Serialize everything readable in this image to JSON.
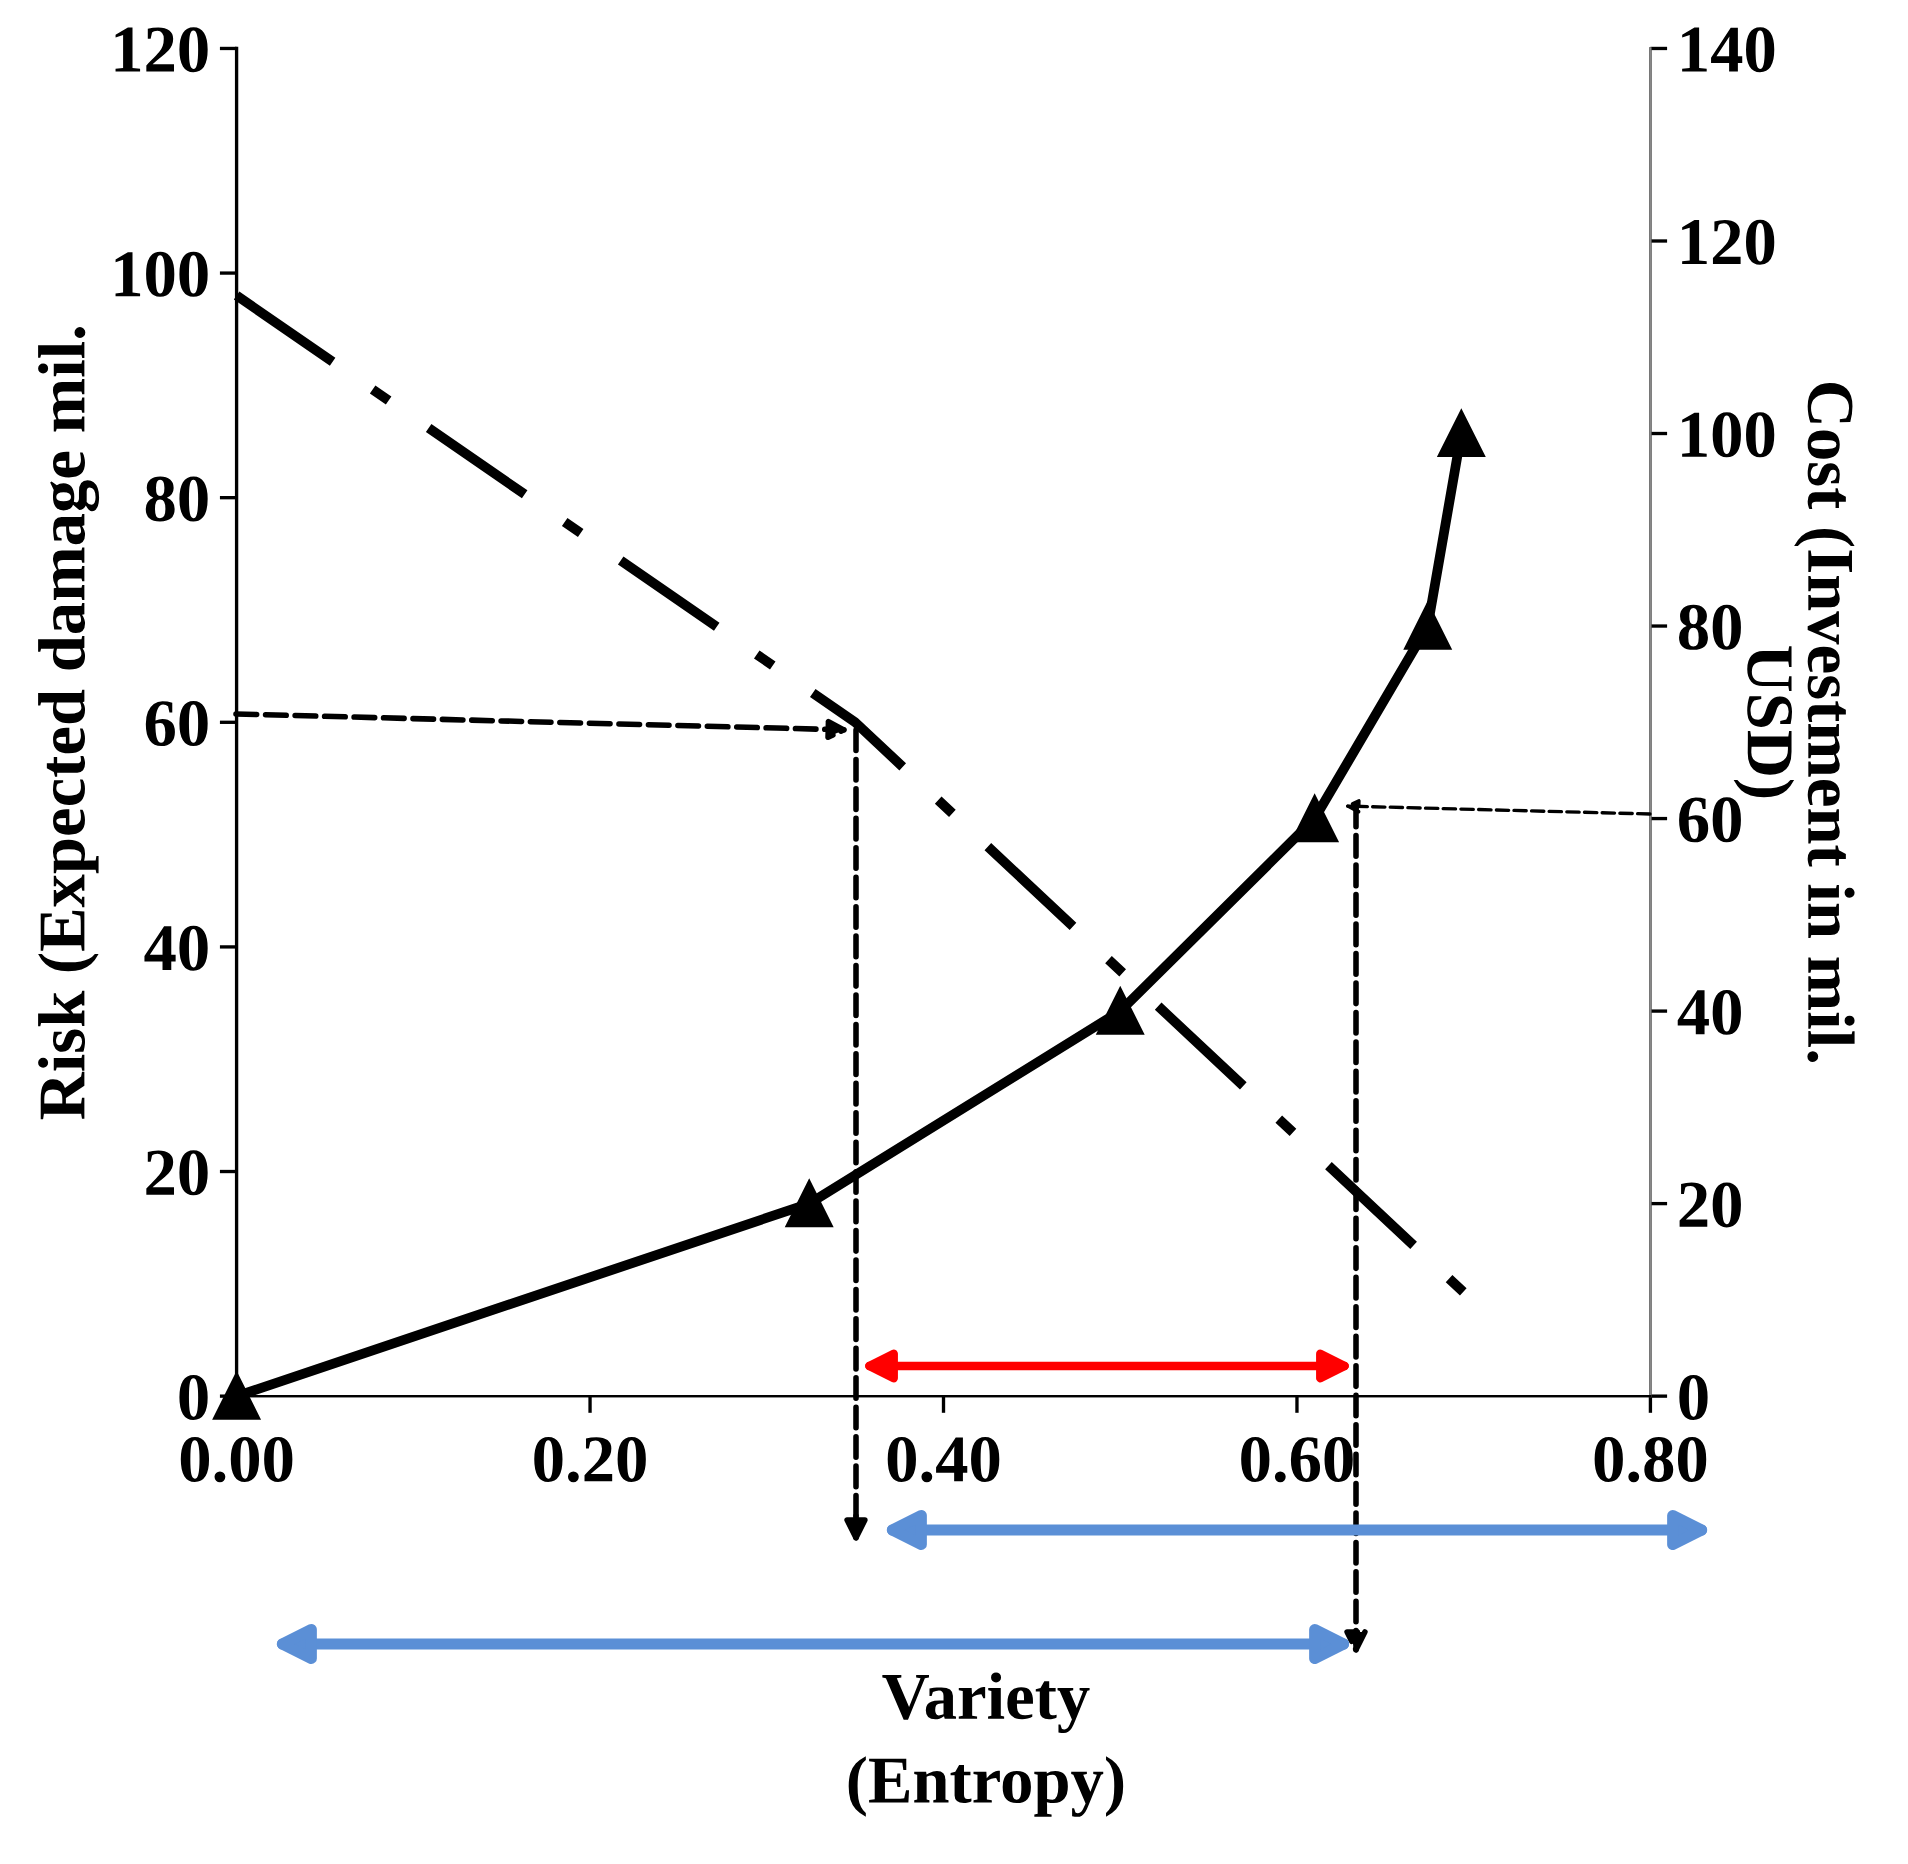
{
  "chart_data": {
    "type": "line",
    "xlabel": "Variety\n(Entropy)",
    "ylabel": "Risk (Expected damage mil.",
    "y2label": "Cost (Investment in mil.\nUSD)",
    "xlim": [
      0,
      0.8
    ],
    "xticks": [
      {
        "value": 0,
        "label": "0.00"
      },
      {
        "value": 0.2,
        "label": "0.20"
      },
      {
        "value": 0.4,
        "label": "0.40"
      },
      {
        "value": 0.6,
        "label": "0.60"
      },
      {
        "value": 0.8,
        "label": "0.80"
      }
    ],
    "ylim": [
      0,
      120
    ],
    "yticks": [
      0,
      20,
      40,
      60,
      80,
      100,
      120
    ],
    "y2lim": [
      0,
      140
    ],
    "y2ticks": [
      0,
      20,
      40,
      60,
      80,
      100,
      120,
      140
    ],
    "grid": false,
    "legend": false,
    "series": [
      {
        "color": "#000000",
        "axis": "y2",
        "marker": "triangle",
        "line_style": "solid",
        "x": [
          0.0,
          0.324,
          0.5,
          0.61,
          0.674,
          0.693
        ],
        "values": [
          0,
          20,
          40,
          60,
          80,
          100
        ]
      },
      {
        "color": "#000000",
        "axis": "y",
        "marker": "none",
        "line_style": "dashdot",
        "x": [
          0.0,
          0.35,
          0.696
        ],
        "values": [
          98,
          60,
          9
        ]
      }
    ]
  }
}
